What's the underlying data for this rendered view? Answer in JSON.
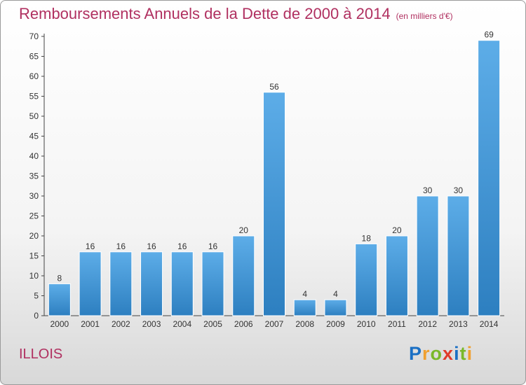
{
  "title": "Remboursements Annuels de la Dette de 2000 à 2014",
  "unit": "(en milliers d'€)",
  "commune": "ILLOIS",
  "logo": {
    "letters": [
      {
        "ch": "P",
        "color": "#1a6fc4"
      },
      {
        "ch": "r",
        "color": "#f0a030"
      },
      {
        "ch": "o",
        "color": "#7ab82a"
      },
      {
        "ch": "x",
        "color": "#e03a2a"
      },
      {
        "ch": "i",
        "color": "#1a6fc4"
      },
      {
        "ch": "t",
        "color": "#7ab82a"
      },
      {
        "ch": "i",
        "color": "#f0a030"
      }
    ]
  },
  "chart_data": {
    "type": "bar",
    "categories": [
      "2000",
      "2001",
      "2002",
      "2003",
      "2004",
      "2005",
      "2006",
      "2007",
      "2008",
      "2009",
      "2010",
      "2011",
      "2012",
      "2013",
      "2014"
    ],
    "values": [
      8,
      16,
      16,
      16,
      16,
      16,
      20,
      56,
      4,
      4,
      18,
      20,
      30,
      30,
      69
    ],
    "yticks": [
      "0",
      "5",
      "10",
      "15",
      "20",
      "25",
      "30",
      "35",
      "40",
      "45",
      "50",
      "55",
      "60",
      "65",
      "70"
    ],
    "ylim": [
      0,
      70
    ],
    "grid": false,
    "legend": "none",
    "colors": {
      "bar_light": "#5dade8",
      "bar_dark": "#2d7fc0",
      "axis": "#444444",
      "text": "#333333"
    }
  }
}
